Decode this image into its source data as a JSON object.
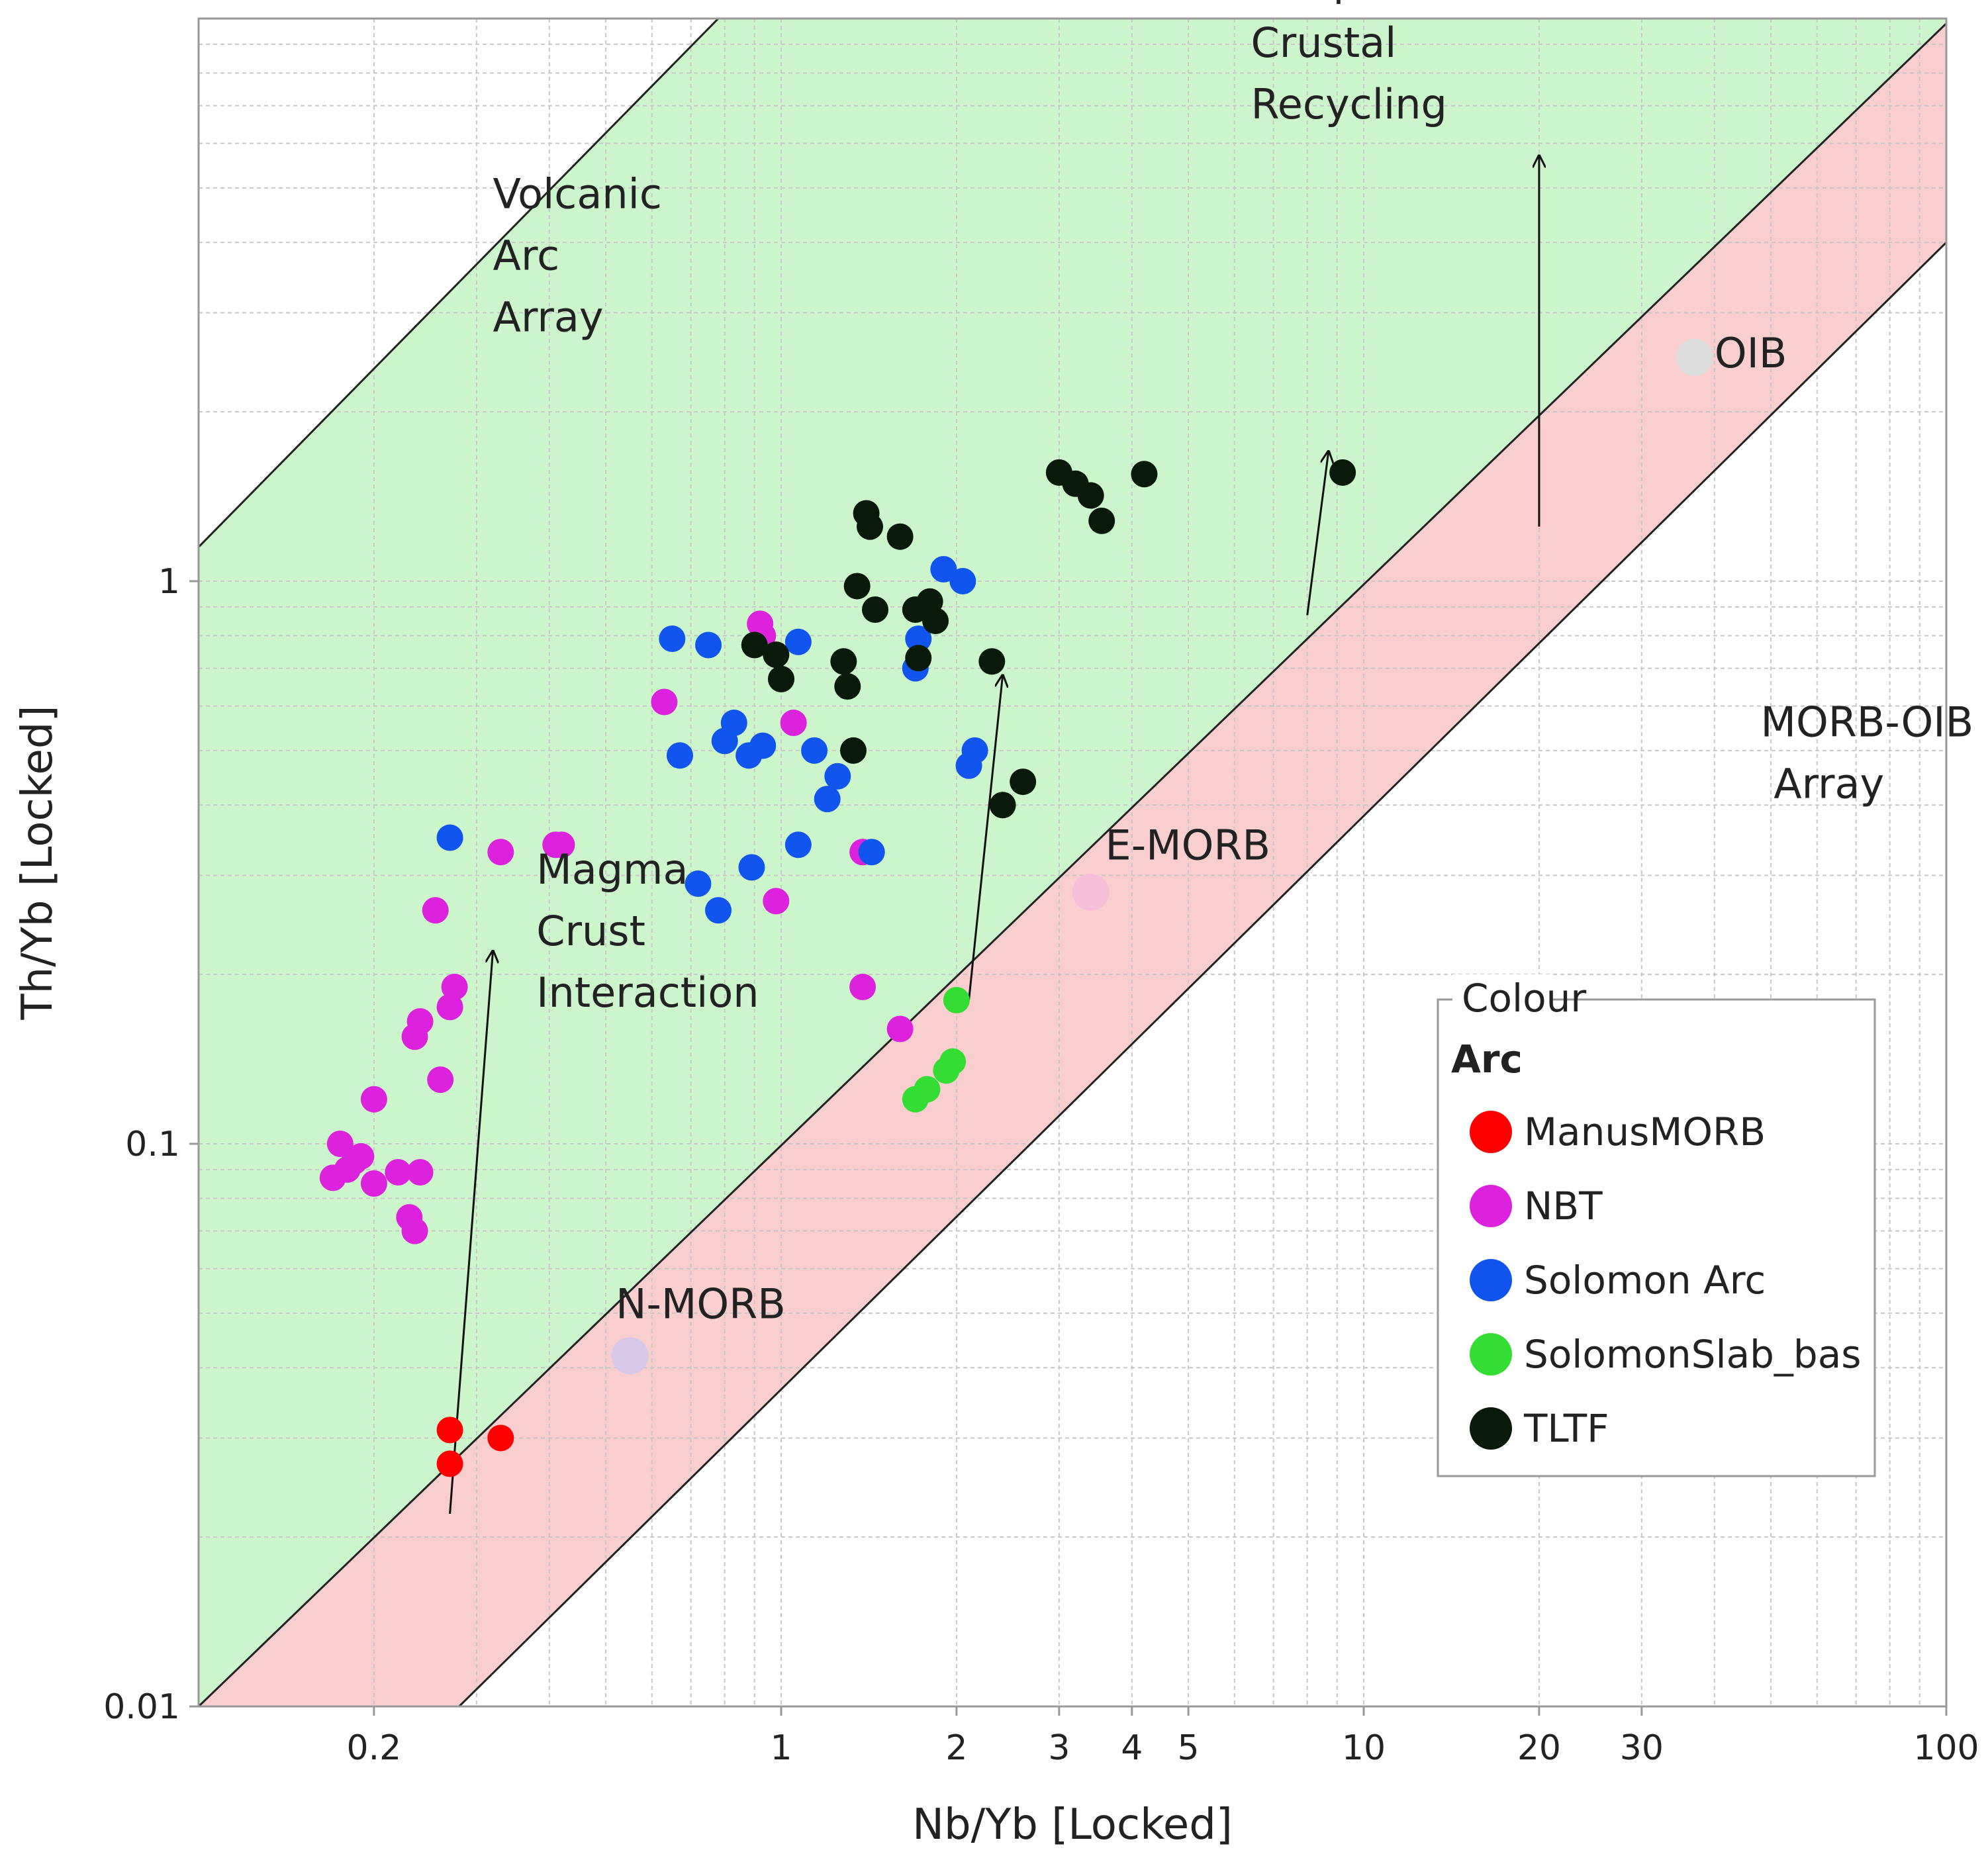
{
  "chart_data": {
    "type": "scatter",
    "xscale": "log",
    "yscale": "log",
    "xlabel": "Nb/Yb [Locked]",
    "ylabel": "Th/Yb [Locked]",
    "xlim": [
      0.1,
      100
    ],
    "ylim": [
      0.01,
      10
    ],
    "xticks": [
      {
        "v": 0.2,
        "label": "0.2"
      },
      {
        "v": 1,
        "label": "1"
      },
      {
        "v": 2,
        "label": "2"
      },
      {
        "v": 3,
        "label": "3"
      },
      {
        "v": 4,
        "label": "4"
      },
      {
        "v": 5,
        "label": "5"
      },
      {
        "v": 10,
        "label": "10"
      },
      {
        "v": 20,
        "label": "20"
      },
      {
        "v": 30,
        "label": "30"
      },
      {
        "v": 100,
        "label": "100"
      }
    ],
    "yticks": [
      {
        "v": 0.01,
        "label": "0.01"
      },
      {
        "v": 0.1,
        "label": "0.1"
      },
      {
        "v": 1,
        "label": "1"
      }
    ],
    "grid": true,
    "regions": [
      {
        "name": "Volcanic Arc Array",
        "color": "#ccf5cc",
        "polygon": [
          [
            0.1,
            0.01
          ],
          [
            0.1,
            1.15
          ],
          [
            0.78,
            10
          ],
          [
            100,
            10
          ],
          [
            100,
            9.8
          ],
          [
            0.1,
            0.01
          ]
        ]
      },
      {
        "name": "MORB-OIB Array",
        "color": "#f8cece",
        "polygon": [
          [
            0.1,
            0.01
          ],
          [
            100,
            9.8
          ],
          [
            100,
            4
          ],
          [
            0.28,
            0.01
          ]
        ]
      }
    ],
    "boundary_lines": [
      {
        "points": [
          [
            0.1,
            1.15
          ],
          [
            0.78,
            10
          ]
        ]
      },
      {
        "points": [
          [
            0.1,
            0.01
          ],
          [
            100,
            9.8
          ]
        ]
      },
      {
        "points": [
          [
            0.28,
            0.01
          ],
          [
            100,
            4
          ]
        ]
      }
    ],
    "arrows": [
      {
        "from": [
          0.27,
          0.022
        ],
        "to": [
          0.32,
          0.22
        ]
      },
      {
        "from": [
          2.1,
          0.18
        ],
        "to": [
          2.4,
          0.68
        ]
      },
      {
        "from": [
          8,
          0.87
        ],
        "to": [
          8.7,
          1.7
        ]
      },
      {
        "from": [
          20,
          1.25
        ],
        "to": [
          20,
          5.7
        ]
      }
    ],
    "annotations": [
      {
        "lines": [
          "Volcanic",
          "Arc",
          "Array"
        ],
        "at": [
          0.32,
          4.6
        ],
        "line_step": 1.37
      },
      {
        "lines": [
          "Deep",
          "Crustal",
          "Recycling"
        ],
        "at": [
          6.4,
          11
        ],
        "line_step": 1.37
      },
      {
        "lines": [
          "Magma",
          "Crust",
          "Interaction"
        ],
        "at": [
          0.38,
          0.29
        ],
        "line_step": 1.37
      },
      {
        "lines": [
          "MORB-OIB",
          " Array"
        ],
        "at": [
          48,
          0.53
        ],
        "line_step": 1.37
      },
      {
        "lines": [
          "OIB"
        ],
        "at": [
          40,
          2.4
        ],
        "line_step": 1.37
      },
      {
        "lines": [
          "E-MORB"
        ],
        "at": [
          3.6,
          0.32
        ],
        "line_step": 1.37
      },
      {
        "lines": [
          "N-MORB"
        ],
        "at": [
          0.52,
          0.049
        ],
        "line_step": 1.37
      }
    ],
    "reference_points": [
      {
        "name": "N-MORB",
        "x": 0.55,
        "y": 0.042,
        "color": "#d8c8ea"
      },
      {
        "name": "E-MORB",
        "x": 3.4,
        "y": 0.28,
        "color": "#f8c0d8"
      },
      {
        "name": "OIB",
        "x": 37,
        "y": 2.5,
        "color": "#dcdcdc"
      }
    ],
    "legend": {
      "title": "Colour",
      "group": "Arc",
      "position": "lower-right",
      "entries": [
        {
          "label": "ManusMORB",
          "color": "#ff0000"
        },
        {
          "label": "NBT",
          "color": "#dd22dd"
        },
        {
          "label": "Solomon Arc",
          "color": "#1155ee"
        },
        {
          "label": "SolomonSlab_bas",
          "color": "#33dd33"
        },
        {
          "label": "TLTF",
          "color": "#0a1a0a"
        }
      ]
    },
    "series": [
      {
        "name": "ManusMORB",
        "color": "#ff0000",
        "points": [
          [
            0.27,
            0.031
          ],
          [
            0.27,
            0.027
          ],
          [
            0.33,
            0.03
          ]
        ]
      },
      {
        "name": "NBT",
        "color": "#dd22dd",
        "points": [
          [
            0.17,
            0.087
          ],
          [
            0.175,
            0.1
          ],
          [
            0.18,
            0.09
          ],
          [
            0.185,
            0.093
          ],
          [
            0.19,
            0.095
          ],
          [
            0.2,
            0.085
          ],
          [
            0.22,
            0.089
          ],
          [
            0.23,
            0.074
          ],
          [
            0.235,
            0.07
          ],
          [
            0.24,
            0.089
          ],
          [
            0.2,
            0.12
          ],
          [
            0.235,
            0.155
          ],
          [
            0.24,
            0.165
          ],
          [
            0.26,
            0.13
          ],
          [
            0.27,
            0.175
          ],
          [
            0.275,
            0.19
          ],
          [
            0.255,
            0.26
          ],
          [
            0.33,
            0.33
          ],
          [
            0.41,
            0.34
          ],
          [
            0.42,
            0.34
          ],
          [
            0.63,
            0.61
          ],
          [
            0.92,
            0.84
          ],
          [
            0.93,
            0.8
          ],
          [
            1.0,
            0.67
          ],
          [
            1.05,
            0.56
          ],
          [
            0.98,
            0.27
          ],
          [
            1.38,
            0.19
          ],
          [
            1.38,
            0.33
          ],
          [
            1.6,
            0.16
          ]
        ]
      },
      {
        "name": "Solomon Arc",
        "color": "#1155ee",
        "points": [
          [
            0.27,
            0.35
          ],
          [
            0.65,
            0.79
          ],
          [
            0.75,
            0.77
          ],
          [
            0.67,
            0.49
          ],
          [
            0.8,
            0.52
          ],
          [
            0.83,
            0.56
          ],
          [
            0.88,
            0.49
          ],
          [
            0.93,
            0.51
          ],
          [
            0.72,
            0.29
          ],
          [
            0.78,
            0.26
          ],
          [
            0.89,
            0.31
          ],
          [
            1.07,
            0.34
          ],
          [
            1.07,
            0.78
          ],
          [
            1.14,
            0.5
          ],
          [
            1.2,
            0.41
          ],
          [
            1.25,
            0.45
          ],
          [
            1.43,
            0.33
          ],
          [
            1.7,
            0.7
          ],
          [
            1.72,
            0.79
          ],
          [
            1.9,
            1.05
          ],
          [
            2.05,
            1.0
          ],
          [
            2.1,
            0.47
          ],
          [
            2.15,
            0.5
          ]
        ]
      },
      {
        "name": "SolomonSlab_bas",
        "color": "#33dd33",
        "points": [
          [
            1.7,
            0.12
          ],
          [
            1.78,
            0.125
          ],
          [
            1.92,
            0.135
          ],
          [
            1.97,
            0.14
          ],
          [
            2.0,
            0.18
          ]
        ]
      },
      {
        "name": "TLTF",
        "color": "#0a1a0a",
        "points": [
          [
            0.9,
            0.77
          ],
          [
            0.98,
            0.74
          ],
          [
            1.0,
            0.67
          ],
          [
            1.28,
            0.72
          ],
          [
            1.3,
            0.65
          ],
          [
            1.33,
            0.5
          ],
          [
            1.35,
            0.98
          ],
          [
            1.4,
            1.32
          ],
          [
            1.42,
            1.25
          ],
          [
            1.45,
            0.89
          ],
          [
            1.6,
            1.2
          ],
          [
            1.7,
            0.89
          ],
          [
            1.72,
            0.73
          ],
          [
            1.8,
            0.92
          ],
          [
            1.84,
            0.85
          ],
          [
            2.3,
            0.72
          ],
          [
            2.4,
            0.4
          ],
          [
            2.6,
            0.44
          ],
          [
            3.0,
            1.56
          ],
          [
            3.2,
            1.49
          ],
          [
            3.4,
            1.42
          ],
          [
            3.55,
            1.28
          ],
          [
            4.2,
            1.55
          ],
          [
            9.2,
            1.56
          ]
        ]
      }
    ]
  }
}
